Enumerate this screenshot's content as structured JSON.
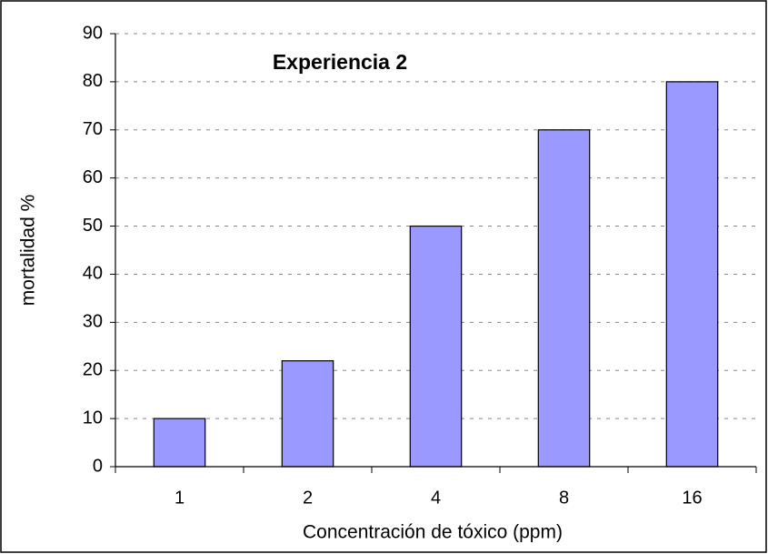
{
  "chart_data": {
    "type": "bar",
    "title": "Experiencia 2",
    "x_label": "Concentración de tóxico (ppm)",
    "y_label": "mortalidad %",
    "categories": [
      "1",
      "2",
      "4",
      "8",
      "16"
    ],
    "values": [
      10,
      22,
      50,
      70,
      80
    ],
    "color": "#9999ff",
    "ylim": [
      0,
      90
    ],
    "yticks": [
      0,
      10,
      20,
      30,
      40,
      50,
      60,
      70,
      80,
      90
    ],
    "grid": true
  }
}
